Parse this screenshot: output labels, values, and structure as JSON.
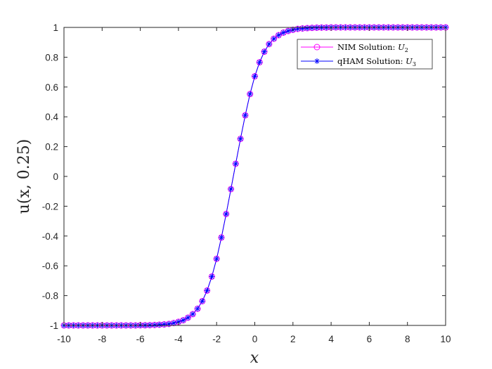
{
  "chart_data": {
    "type": "line",
    "xlabel": "x",
    "ylabel": "u(x, 0.25)",
    "xlim": [
      -10,
      10
    ],
    "ylim": [
      -1,
      1
    ],
    "xticks": [
      "-10",
      "-8",
      "-6",
      "-4",
      "-2",
      "0",
      "2",
      "4",
      "6",
      "8",
      "10"
    ],
    "yticks": [
      "1",
      "0.8",
      "0.6",
      "0.4",
      "0.2",
      "0",
      "-0.2",
      "-0.4",
      "-0.6",
      "-0.8",
      "-1"
    ],
    "grid": false,
    "legend_position": "top-right",
    "x": [
      -10.0,
      -9.75,
      -9.5,
      -9.25,
      -9.0,
      -8.75,
      -8.5,
      -8.25,
      -8.0,
      -7.75,
      -7.5,
      -7.25,
      -7.0,
      -6.75,
      -6.5,
      -6.25,
      -6.0,
      -5.75,
      -5.5,
      -5.25,
      -5.0,
      -4.75,
      -4.5,
      -4.25,
      -4.0,
      -3.75,
      -3.5,
      -3.25,
      -3.0,
      -2.75,
      -2.5,
      -2.25,
      -2.0,
      -1.75,
      -1.5,
      -1.25,
      -1.0,
      -0.75,
      -0.5,
      -0.25,
      0.0,
      0.25,
      0.5,
      0.75,
      1.0,
      1.25,
      1.5,
      1.75,
      2.0,
      2.25,
      2.5,
      2.75,
      3.0,
      3.25,
      3.5,
      3.75,
      4.0,
      4.25,
      4.5,
      4.75,
      5.0,
      5.25,
      5.5,
      5.75,
      6.0,
      6.25,
      6.5,
      6.75,
      7.0,
      7.25,
      7.5,
      7.75,
      8.0,
      8.25,
      8.5,
      8.75,
      9.0,
      9.25,
      9.5,
      9.75,
      10.0
    ],
    "series": [
      {
        "name": "NIM Solution: U_2",
        "color": "#ff00ff",
        "marker": "circle",
        "line": true,
        "values": [
          -1.0,
          -1.0,
          -1.0,
          -1.0,
          -1.0,
          -1.0,
          -1.0,
          -1.0,
          -1.0,
          -1.0,
          -1.0,
          -1.0,
          -1.0,
          -1.0,
          -1.0,
          -1.0,
          -0.999,
          -0.999,
          -0.998,
          -0.997,
          -0.995,
          -0.993,
          -0.99,
          -0.984,
          -0.976,
          -0.965,
          -0.948,
          -0.924,
          -0.888,
          -0.837,
          -0.766,
          -0.672,
          -0.553,
          -0.41,
          -0.252,
          -0.085,
          0.085,
          0.252,
          0.41,
          0.553,
          0.672,
          0.766,
          0.837,
          0.888,
          0.924,
          0.948,
          0.965,
          0.976,
          0.984,
          0.99,
          0.993,
          0.995,
          0.997,
          0.998,
          0.999,
          0.999,
          1.0,
          1.0,
          1.0,
          1.0,
          1.0,
          1.0,
          1.0,
          1.0,
          1.0,
          1.0,
          1.0,
          1.0,
          1.0,
          1.0,
          1.0,
          1.0,
          1.0,
          1.0,
          1.0,
          1.0,
          1.0,
          1.0,
          1.0,
          1.0,
          1.0
        ]
      },
      {
        "name": "qHAM Solution: U_3",
        "color": "#0000ff",
        "marker": "asterisk",
        "line": true,
        "values": [
          -1.0,
          -1.0,
          -1.0,
          -1.0,
          -1.0,
          -1.0,
          -1.0,
          -1.0,
          -1.0,
          -1.0,
          -1.0,
          -1.0,
          -1.0,
          -1.0,
          -1.0,
          -1.0,
          -0.999,
          -0.999,
          -0.998,
          -0.997,
          -0.995,
          -0.993,
          -0.99,
          -0.984,
          -0.976,
          -0.965,
          -0.948,
          -0.924,
          -0.888,
          -0.837,
          -0.766,
          -0.672,
          -0.553,
          -0.41,
          -0.252,
          -0.085,
          0.085,
          0.252,
          0.41,
          0.553,
          0.672,
          0.766,
          0.837,
          0.888,
          0.924,
          0.948,
          0.965,
          0.976,
          0.984,
          0.99,
          0.993,
          0.995,
          0.997,
          0.998,
          0.999,
          0.999,
          1.0,
          1.0,
          1.0,
          1.0,
          1.0,
          1.0,
          1.0,
          1.0,
          1.0,
          1.0,
          1.0,
          1.0,
          1.0,
          1.0,
          1.0,
          1.0,
          1.0,
          1.0,
          1.0,
          1.0,
          1.0,
          1.0,
          1.0,
          1.0,
          1.0
        ]
      }
    ],
    "legend": {
      "entries": [
        {
          "label_prefix": "NIM Solution: ",
          "label_var": "U",
          "label_sub": "2"
        },
        {
          "label_prefix": "qHAM Solution: ",
          "label_var": "U",
          "label_sub": "3"
        }
      ]
    }
  }
}
